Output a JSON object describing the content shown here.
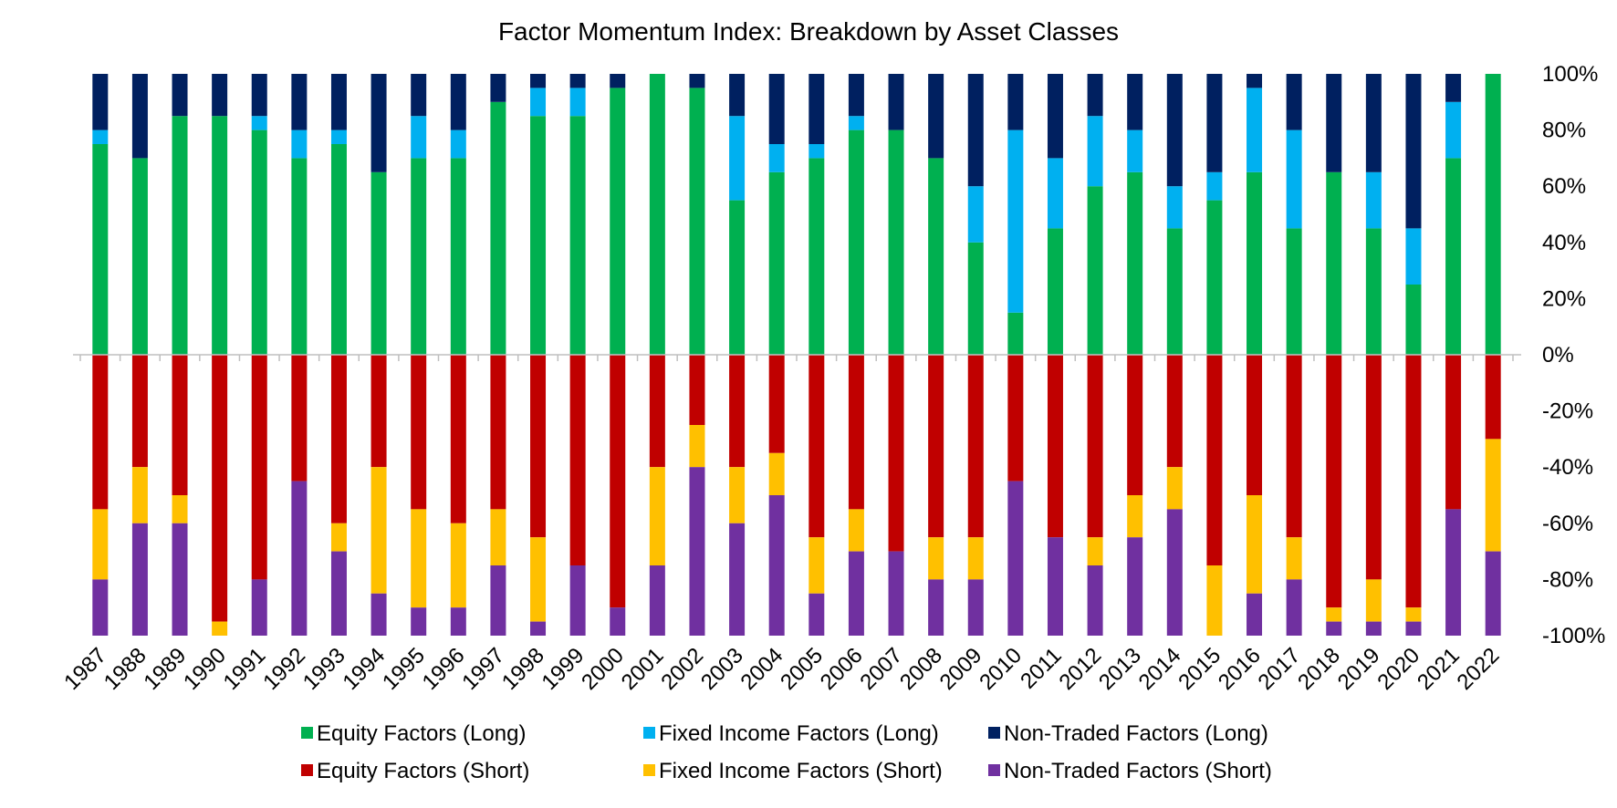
{
  "chart_data": {
    "type": "bar",
    "stacked": true,
    "title": "Factor Momentum Index: Breakdown by Asset Classes",
    "xlabel": "",
    "ylabel": "",
    "ylim": [
      -100,
      100
    ],
    "yticks": [
      100,
      80,
      60,
      40,
      20,
      0,
      -20,
      -40,
      -60,
      -80,
      -100
    ],
    "ytick_labels": [
      "100%",
      "80%",
      "60%",
      "40%",
      "20%",
      "0%",
      "-20%",
      "-40%",
      "-60%",
      "-80%",
      "-100%"
    ],
    "y_axis_position": "right",
    "grid": false,
    "legend_position": "bottom",
    "categories": [
      "1987",
      "1988",
      "1989",
      "1990",
      "1991",
      "1992",
      "1993",
      "1994",
      "1995",
      "1996",
      "1997",
      "1998",
      "1999",
      "2000",
      "2001",
      "2002",
      "2003",
      "2004",
      "2005",
      "2006",
      "2007",
      "2008",
      "2009",
      "2010",
      "2011",
      "2012",
      "2013",
      "2014",
      "2015",
      "2016",
      "2017",
      "2018",
      "2019",
      "2020",
      "2021",
      "2022"
    ],
    "series": [
      {
        "name": "Equity Factors (Long)",
        "color": "#00b050",
        "side": "positive",
        "values": [
          75,
          70,
          85,
          85,
          80,
          70,
          75,
          65,
          70,
          70,
          90,
          85,
          85,
          95,
          100,
          95,
          55,
          65,
          70,
          80,
          80,
          70,
          40,
          15,
          45,
          60,
          65,
          45,
          55,
          65,
          45,
          65,
          45,
          25,
          70,
          100
        ]
      },
      {
        "name": "Fixed Income Factors (Long)",
        "color": "#00b0f0",
        "side": "positive",
        "values": [
          5,
          0,
          0,
          0,
          5,
          10,
          5,
          0,
          15,
          10,
          0,
          10,
          10,
          0,
          0,
          0,
          30,
          10,
          5,
          5,
          0,
          0,
          20,
          65,
          25,
          25,
          15,
          15,
          10,
          30,
          35,
          0,
          20,
          20,
          20,
          0
        ]
      },
      {
        "name": "Non-Traded Factors (Long)",
        "color": "#002060",
        "side": "positive",
        "values": [
          20,
          30,
          15,
          15,
          15,
          20,
          20,
          35,
          15,
          20,
          10,
          5,
          5,
          5,
          0,
          5,
          15,
          25,
          25,
          15,
          20,
          30,
          40,
          20,
          30,
          15,
          20,
          40,
          35,
          5,
          20,
          35,
          35,
          55,
          10,
          0
        ]
      },
      {
        "name": "Equity Factors (Short)",
        "color": "#c00000",
        "side": "negative",
        "values": [
          -55,
          -40,
          -50,
          -95,
          -80,
          -45,
          -60,
          -40,
          -55,
          -60,
          -55,
          -65,
          -75,
          -90,
          -40,
          -25,
          -40,
          -35,
          -65,
          -55,
          -70,
          -65,
          -65,
          -45,
          -65,
          -65,
          -50,
          -40,
          -75,
          -50,
          -65,
          -90,
          -80,
          -90,
          -55,
          -30
        ]
      },
      {
        "name": "Fixed Income Factors (Short)",
        "color": "#ffc000",
        "side": "negative",
        "values": [
          -25,
          -20,
          -10,
          -5,
          0,
          0,
          -10,
          -45,
          -35,
          -30,
          -20,
          -30,
          0,
          0,
          -35,
          -15,
          -20,
          -15,
          -20,
          -15,
          0,
          -15,
          -15,
          0,
          0,
          -10,
          -15,
          -15,
          -25,
          -35,
          -15,
          -5,
          -15,
          -5,
          0,
          -40
        ]
      },
      {
        "name": "Non-Traded Factors (Short)",
        "color": "#7030a0",
        "side": "negative",
        "values": [
          -20,
          -40,
          -40,
          0,
          -20,
          -55,
          -30,
          -15,
          -10,
          -10,
          -25,
          -5,
          -25,
          -10,
          -25,
          -60,
          -40,
          -50,
          -15,
          -30,
          -30,
          -20,
          -20,
          -55,
          -35,
          -25,
          -35,
          -45,
          0,
          -15,
          -20,
          -5,
          -5,
          -5,
          -45,
          -30
        ]
      }
    ],
    "legend_order": [
      0,
      1,
      2,
      3,
      4,
      5
    ]
  }
}
